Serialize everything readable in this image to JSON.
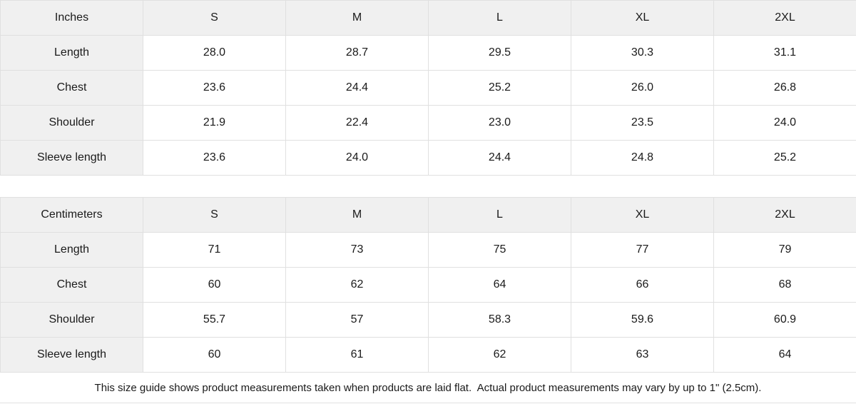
{
  "colors": {
    "header_bg": "#f0f0f0",
    "border": "#e0e0e0",
    "text": "#1a1a1a",
    "background": "#ffffff"
  },
  "tables": [
    {
      "unit": "Inches",
      "sizes": [
        "S",
        "M",
        "L",
        "XL",
        "2XL"
      ],
      "rows": [
        {
          "label": "Length",
          "values": [
            "28.0",
            "28.7",
            "29.5",
            "30.3",
            "31.1"
          ]
        },
        {
          "label": "Chest",
          "values": [
            "23.6",
            "24.4",
            "25.2",
            "26.0",
            "26.8"
          ]
        },
        {
          "label": "Shoulder",
          "values": [
            "21.9",
            "22.4",
            "23.0",
            "23.5",
            "24.0"
          ]
        },
        {
          "label": "Sleeve length",
          "values": [
            "23.6",
            "24.0",
            "24.4",
            "24.8",
            "25.2"
          ]
        }
      ]
    },
    {
      "unit": "Centimeters",
      "sizes": [
        "S",
        "M",
        "L",
        "XL",
        "2XL"
      ],
      "rows": [
        {
          "label": "Length",
          "values": [
            "71",
            "73",
            "75",
            "77",
            "79"
          ]
        },
        {
          "label": "Chest",
          "values": [
            "60",
            "62",
            "64",
            "66",
            "68"
          ]
        },
        {
          "label": "Shoulder",
          "values": [
            "55.7",
            "57",
            "58.3",
            "59.6",
            "60.9"
          ]
        },
        {
          "label": "Sleeve length",
          "values": [
            "60",
            "61",
            "62",
            "63",
            "64"
          ]
        }
      ]
    }
  ],
  "footer": {
    "note": "This size guide shows product measurements taken when products are laid flat.  Actual product measurements may vary by up to 1\" (2.5cm)."
  }
}
